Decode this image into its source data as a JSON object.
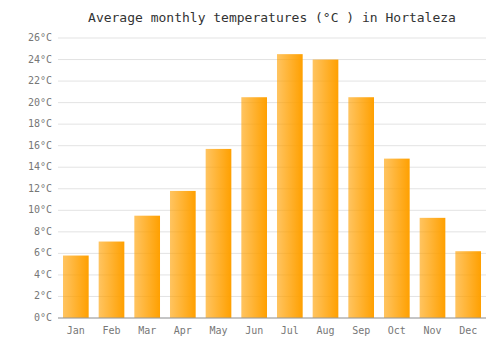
{
  "chart_data": {
    "type": "bar",
    "title": "Average monthly temperatures (°C ) in Hortaleza",
    "categories": [
      "Jan",
      "Feb",
      "Mar",
      "Apr",
      "May",
      "Jun",
      "Jul",
      "Aug",
      "Sep",
      "Oct",
      "Nov",
      "Dec"
    ],
    "values": [
      5.8,
      7.1,
      9.5,
      11.8,
      15.7,
      20.5,
      24.5,
      24.0,
      20.5,
      14.8,
      9.3,
      6.2
    ],
    "color": "#FFA000",
    "ylim": [
      0,
      26
    ],
    "yticks": [
      {
        "value": 0,
        "label": "0°C"
      },
      {
        "value": 2,
        "label": "2°C"
      },
      {
        "value": 4,
        "label": "4°C"
      },
      {
        "value": 6,
        "label": "6°C"
      },
      {
        "value": 8,
        "label": "8°C"
      },
      {
        "value": 10,
        "label": "10°C"
      },
      {
        "value": 12,
        "label": "12°C"
      },
      {
        "value": 14,
        "label": "14°C"
      },
      {
        "value": 16,
        "label": "16°C"
      },
      {
        "value": 18,
        "label": "18°C"
      },
      {
        "value": 20,
        "label": "20°C"
      },
      {
        "value": 22,
        "label": "22°C"
      },
      {
        "value": 24,
        "label": "24°C"
      },
      {
        "value": 26,
        "label": "26°C"
      }
    ],
    "grid": true
  }
}
